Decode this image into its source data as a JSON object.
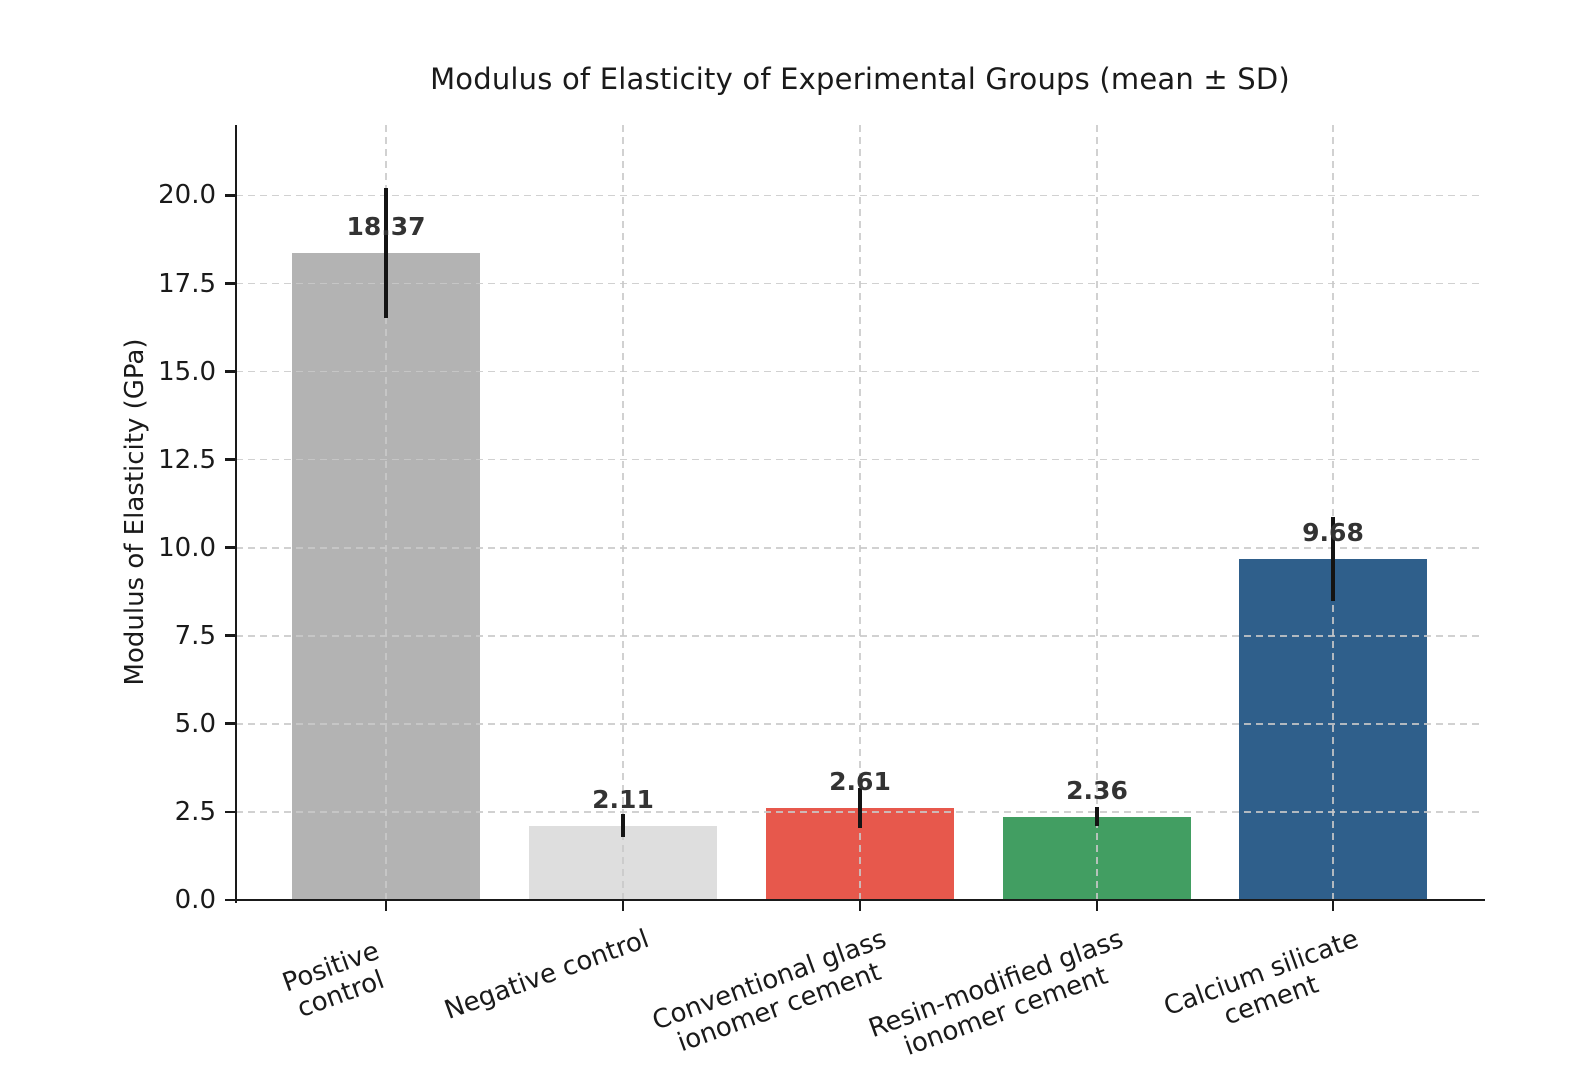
{
  "chart_data": {
    "type": "bar",
    "title": "Modulus of Elasticity of Experimental Groups (mean ± SD)",
    "ylabel": "Modulus of Elasticity (GPa)",
    "xlabel": "",
    "categories": [
      "Positive control",
      "Negative control",
      "Conventional glass\nionomer cement",
      "Resin-modified glass\nionomer cement",
      "Calcium silicate\ncement"
    ],
    "values": [
      18.37,
      2.11,
      2.61,
      2.36,
      9.68
    ],
    "sd": [
      1.85,
      0.33,
      0.56,
      0.27,
      1.2
    ],
    "value_labels": [
      "18.37",
      "2.11",
      "2.61",
      "2.36",
      "9.68"
    ],
    "bar_colors": [
      "#b3b3b3",
      "#dedede",
      "#e7584c",
      "#429e62",
      "#2f5f8b"
    ],
    "yticks": [
      0.0,
      2.5,
      5.0,
      7.5,
      10.0,
      12.5,
      15.0,
      17.5,
      20.0
    ],
    "ylim": [
      0,
      22
    ],
    "grid": true,
    "error_bars": true,
    "legend_position": "none"
  },
  "style_colors": {
    "axis": "#1a1a1a",
    "grid": "#c9c9c9",
    "error_bar": "#141414",
    "value_label": "#333333",
    "background": "#ffffff"
  }
}
